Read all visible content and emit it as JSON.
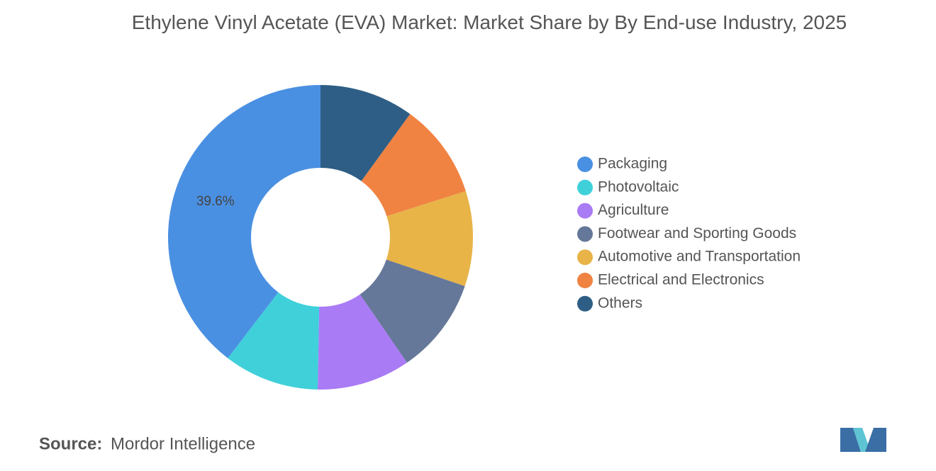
{
  "chart_data": {
    "type": "donut",
    "title": "Ethylene Vinyl Acetate (EVA) Market: Market Share by By End-use Industry, 2025",
    "categories": [
      "Packaging",
      "Photovoltaic",
      "Agriculture",
      "Footwear and Sporting Goods",
      "Automotive and Transportation",
      "Electrical and Electronics",
      "Others"
    ],
    "values": [
      39.6,
      10.1,
      9.9,
      10.2,
      10.1,
      10.1,
      10.0
    ],
    "value_labels": [
      "39.6%",
      null,
      null,
      null,
      null,
      null,
      null
    ],
    "colors": [
      "#4a90e2",
      "#40d0da",
      "#a97bf5",
      "#667899",
      "#e8b448",
      "#f08342",
      "#2e5e85"
    ],
    "legend": "right"
  },
  "source": {
    "label": "Source:",
    "text": "Mordor Intelligence"
  }
}
